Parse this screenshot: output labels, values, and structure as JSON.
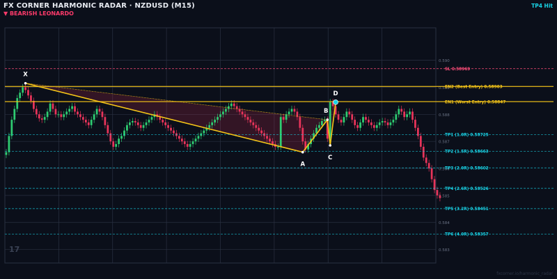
{
  "header": {
    "title": "FX CORNER HARMONIC RADAR  ·  NZDUSD (M15)",
    "subtitle": "▼ BEARISH  LEONARDO",
    "status": "TP4 Hit"
  },
  "watermark": "fxcorner.io/harmonic_radar",
  "logo": "17",
  "colors": {
    "background": "#0b0f1a",
    "grid": "#2a3142",
    "pattern": "#f5c518",
    "sl": "#ff4d7a",
    "entry": "#f5c518",
    "tp": "#19d3e6",
    "bull": "#2ecc71",
    "bear": "#e8345a"
  },
  "chart_data": {
    "type": "candlestick",
    "ylim": [
      0.5825,
      0.5912
    ],
    "y_ticks": [
      {
        "value": 0.59,
        "label": "0.590"
      },
      {
        "value": 0.589,
        "label": "0.589"
      },
      {
        "value": 0.588,
        "label": "0.588"
      },
      {
        "value": 0.587,
        "label": "0.587"
      },
      {
        "value": 0.586,
        "label": "0.586"
      },
      {
        "value": 0.585,
        "label": "0.585"
      },
      {
        "value": 0.584,
        "label": "0.584"
      },
      {
        "value": 0.583,
        "label": "0.583"
      }
    ],
    "levels": [
      {
        "kind": "sl",
        "label": "SL  0.58969",
        "value": 0.58969
      },
      {
        "kind": "entry",
        "label": "EN2 (Best Entry)  0.58903",
        "value": 0.58903
      },
      {
        "kind": "entry",
        "label": "EN1 (Worst Entry)  0.58847",
        "value": 0.58847
      },
      {
        "kind": "tp",
        "label": "TP1 (1.0R)  0.58725",
        "value": 0.58725
      },
      {
        "kind": "tp",
        "label": "TP2 (1.5R)  0.58663",
        "value": 0.58663
      },
      {
        "kind": "tp",
        "label": "TP3 (2.0R)  0.58602",
        "value": 0.58602
      },
      {
        "kind": "tp",
        "label": "TP4 (2.6R)  0.58526",
        "value": 0.58526
      },
      {
        "kind": "tp",
        "label": "TP5 (3.2R)  0.58451",
        "value": 0.58451
      },
      {
        "kind": "tp",
        "label": "TP6 (4.0R)  0.58357",
        "value": 0.58357
      }
    ],
    "pattern": [
      {
        "label": "X",
        "bar": 7,
        "value": 0.58915
      },
      {
        "label": "A",
        "bar": 108,
        "value": 0.5866
      },
      {
        "label": "B",
        "bar": 117,
        "value": 0.5878
      },
      {
        "label": "C",
        "bar": 118,
        "value": 0.58685
      },
      {
        "label": "D",
        "bar": 120,
        "value": 0.58845
      }
    ],
    "bar_count": 157,
    "candles_close": [
      0.5866,
      0.5872,
      0.5878,
      0.5882,
      0.5886,
      0.5888,
      0.589,
      0.5889,
      0.5887,
      0.5885,
      0.5882,
      0.588,
      0.58785,
      0.5878,
      0.5879,
      0.5881,
      0.5884,
      0.5882,
      0.588,
      0.588,
      0.5879,
      0.588,
      0.5881,
      0.5882,
      0.5883,
      0.5881,
      0.588,
      0.5879,
      0.5878,
      0.5877,
      0.5876,
      0.5878,
      0.588,
      0.5882,
      0.5881,
      0.5879,
      0.5876,
      0.5873,
      0.587,
      0.5868,
      0.5869,
      0.5871,
      0.5872,
      0.5874,
      0.5876,
      0.5877,
      0.58775,
      0.5877,
      0.5876,
      0.5875,
      0.5876,
      0.5877,
      0.5878,
      0.5879,
      0.588,
      0.5879,
      0.5878,
      0.5877,
      0.5876,
      0.5875,
      0.5874,
      0.5873,
      0.5872,
      0.5871,
      0.587,
      0.5869,
      0.5868,
      0.5869,
      0.587,
      0.5871,
      0.5872,
      0.5873,
      0.5874,
      0.5875,
      0.5876,
      0.5877,
      0.5878,
      0.5879,
      0.588,
      0.5881,
      0.5882,
      0.5883,
      0.5884,
      0.5883,
      0.5882,
      0.5881,
      0.588,
      0.5879,
      0.5878,
      0.5877,
      0.5876,
      0.5875,
      0.5874,
      0.5873,
      0.5872,
      0.5871,
      0.587,
      0.5869,
      0.5868,
      0.5868,
      0.5879,
      0.5878,
      0.588,
      0.5881,
      0.5882,
      0.5881,
      0.5879,
      0.5875,
      0.587,
      0.5867,
      0.5869,
      0.5871,
      0.5873,
      0.5875,
      0.5876,
      0.58775,
      0.5878,
      0.5871,
      0.58845,
      0.5883,
      0.588,
      0.5878,
      0.5877,
      0.5879,
      0.5881,
      0.588,
      0.5878,
      0.5876,
      0.5875,
      0.5877,
      0.5879,
      0.5878,
      0.5877,
      0.5876,
      0.5875,
      0.5876,
      0.5877,
      0.58775,
      0.5877,
      0.5876,
      0.5877,
      0.5878,
      0.588,
      0.5882,
      0.5881,
      0.5879,
      0.588,
      0.5881,
      0.5878,
      0.5875,
      0.5872,
      0.5868,
      0.5864,
      0.5862,
      0.586,
      0.5856,
      0.5852,
      0.585,
      0.5849
    ]
  }
}
